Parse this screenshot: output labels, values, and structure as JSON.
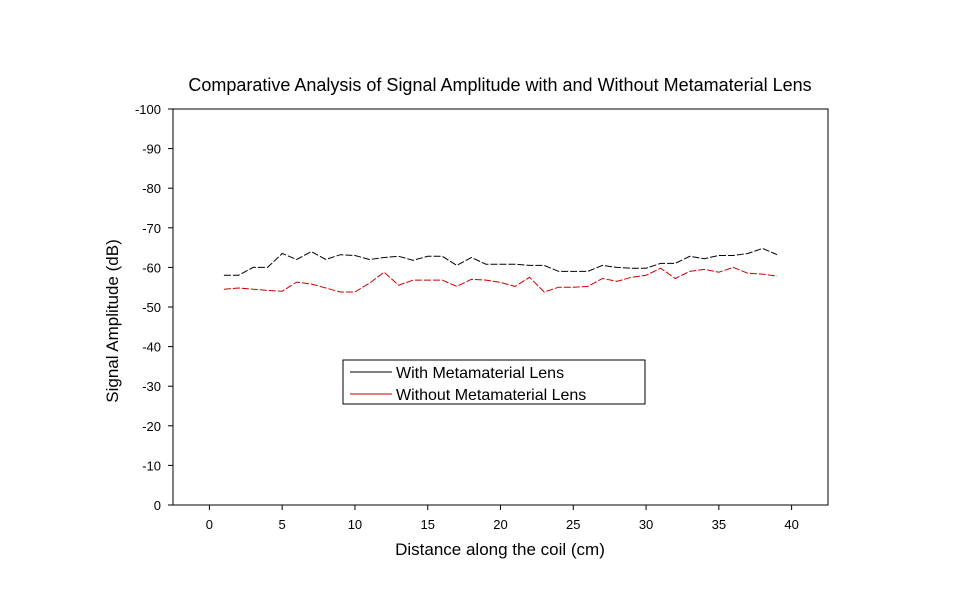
{
  "chart_data": {
    "type": "line",
    "title": "Comparative Analysis of Signal Amplitude with and Without Metamaterial Lens",
    "xlabel": "Distance along the coil (cm)",
    "ylabel": "Signal Amplitude (dB)",
    "xlim": [
      -2.5,
      42.5
    ],
    "ylim": [
      0,
      -100
    ],
    "x_ticks": [
      0,
      5,
      10,
      15,
      20,
      25,
      30,
      35,
      40
    ],
    "y_ticks": [
      0,
      -10,
      -20,
      -30,
      -40,
      -50,
      -60,
      -70,
      -80,
      -90,
      -100
    ],
    "legend": {
      "position": "center"
    },
    "series": [
      {
        "name": "With Metamaterial Lens",
        "color": "#000000",
        "x": [
          1,
          2,
          3,
          4,
          5,
          6,
          7,
          8,
          9,
          10,
          11,
          12,
          13,
          14,
          15,
          16,
          17,
          18,
          19,
          20,
          21,
          22,
          23,
          24,
          25,
          26,
          27,
          28,
          29,
          30,
          31,
          32,
          33,
          34,
          35,
          36,
          37,
          38,
          39
        ],
        "y": [
          -58,
          -58,
          -60,
          -60,
          -63.5,
          -62,
          -64,
          -62,
          -63.2,
          -63,
          -62,
          -62.5,
          -62.8,
          -61.8,
          -62.8,
          -62.8,
          -60.5,
          -62.5,
          -60.8,
          -60.8,
          -60.8,
          -60.5,
          -60.5,
          -59,
          -59,
          -59,
          -60.5,
          -60,
          -59.8,
          -59.8,
          -61,
          -61,
          -62.8,
          -62.2,
          -63,
          -63,
          -63.5,
          -64.8,
          -63.2
        ]
      },
      {
        "name": "Without Metamaterial Lens",
        "color": "#cc0000",
        "x": [
          1,
          2,
          3,
          4,
          5,
          6,
          7,
          8,
          9,
          10,
          11,
          12,
          13,
          14,
          15,
          16,
          17,
          18,
          19,
          20,
          21,
          22,
          23,
          24,
          25,
          26,
          27,
          28,
          29,
          30,
          31,
          32,
          33,
          34,
          35,
          36,
          37,
          38,
          39
        ],
        "y": [
          -54.5,
          -54.8,
          -54.5,
          -54.2,
          -54,
          -56.3,
          -55.8,
          -54.8,
          -53.8,
          -53.8,
          -56,
          -58.8,
          -55.5,
          -56.8,
          -56.8,
          -56.8,
          -55.2,
          -57,
          -56.8,
          -56.2,
          -55.2,
          -57.5,
          -53.8,
          -55,
          -55,
          -55.2,
          -57.2,
          -56.5,
          -57.5,
          -58,
          -59.8,
          -57.2,
          -59,
          -59.5,
          -58.8,
          -60,
          -58.5,
          -58.3,
          -57.8
        ]
      }
    ]
  }
}
